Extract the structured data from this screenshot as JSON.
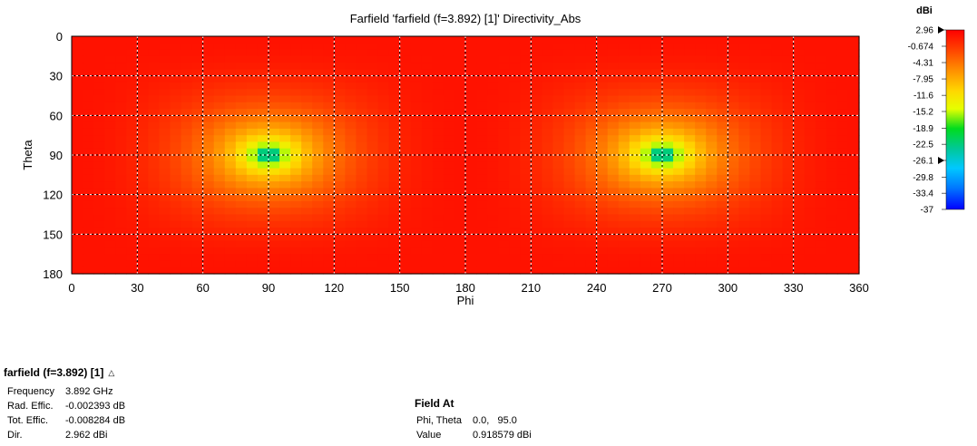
{
  "chart_data": {
    "type": "heatmap",
    "title": "Farfield 'farfield (f=3.892) [1]' Directivity_Abs",
    "xlabel": "Phi",
    "ylabel": "Theta",
    "x_ticks": [
      "0",
      "30",
      "60",
      "90",
      "120",
      "150",
      "180",
      "210",
      "240",
      "270",
      "300",
      "330",
      "360"
    ],
    "y_ticks": [
      "0",
      "30",
      "60",
      "90",
      "120",
      "150",
      "180"
    ],
    "xlim": [
      0,
      360
    ],
    "ylim": [
      0,
      180
    ],
    "y_inverted": true,
    "grid": true,
    "nulls": [
      {
        "phi": 90,
        "theta": 90
      },
      {
        "phi": 270,
        "theta": 90
      }
    ],
    "colorbar": {
      "unit": "dBi",
      "ticks": [
        "2.96",
        "-0.674",
        "-4.31",
        "-7.95",
        "-11.6",
        "-15.2",
        "-18.9",
        "-22.5",
        "-26.1",
        "-29.8",
        "-33.4",
        "-37"
      ],
      "max": 2.96,
      "min": -37,
      "markers": [
        2.96,
        -26.1
      ]
    }
  },
  "info": {
    "title": "farfield (f=3.892) [1]",
    "rows": [
      {
        "key": "Frequency",
        "value": "3.892 GHz"
      },
      {
        "key": "Rad. Effic.",
        "value": "-0.002393 dB"
      },
      {
        "key": "Tot. Effic.",
        "value": "-0.008284 dB"
      },
      {
        "key": "Dir.",
        "value": "2.962 dBi"
      }
    ]
  },
  "field_at": {
    "title": "Field At",
    "rows": [
      {
        "key": "Phi, Theta",
        "value": "0.0,   95.0"
      },
      {
        "key": "Value",
        "value": "0.918579 dBi"
      }
    ]
  },
  "icons": {
    "collapse": "chevron-up-icon"
  }
}
